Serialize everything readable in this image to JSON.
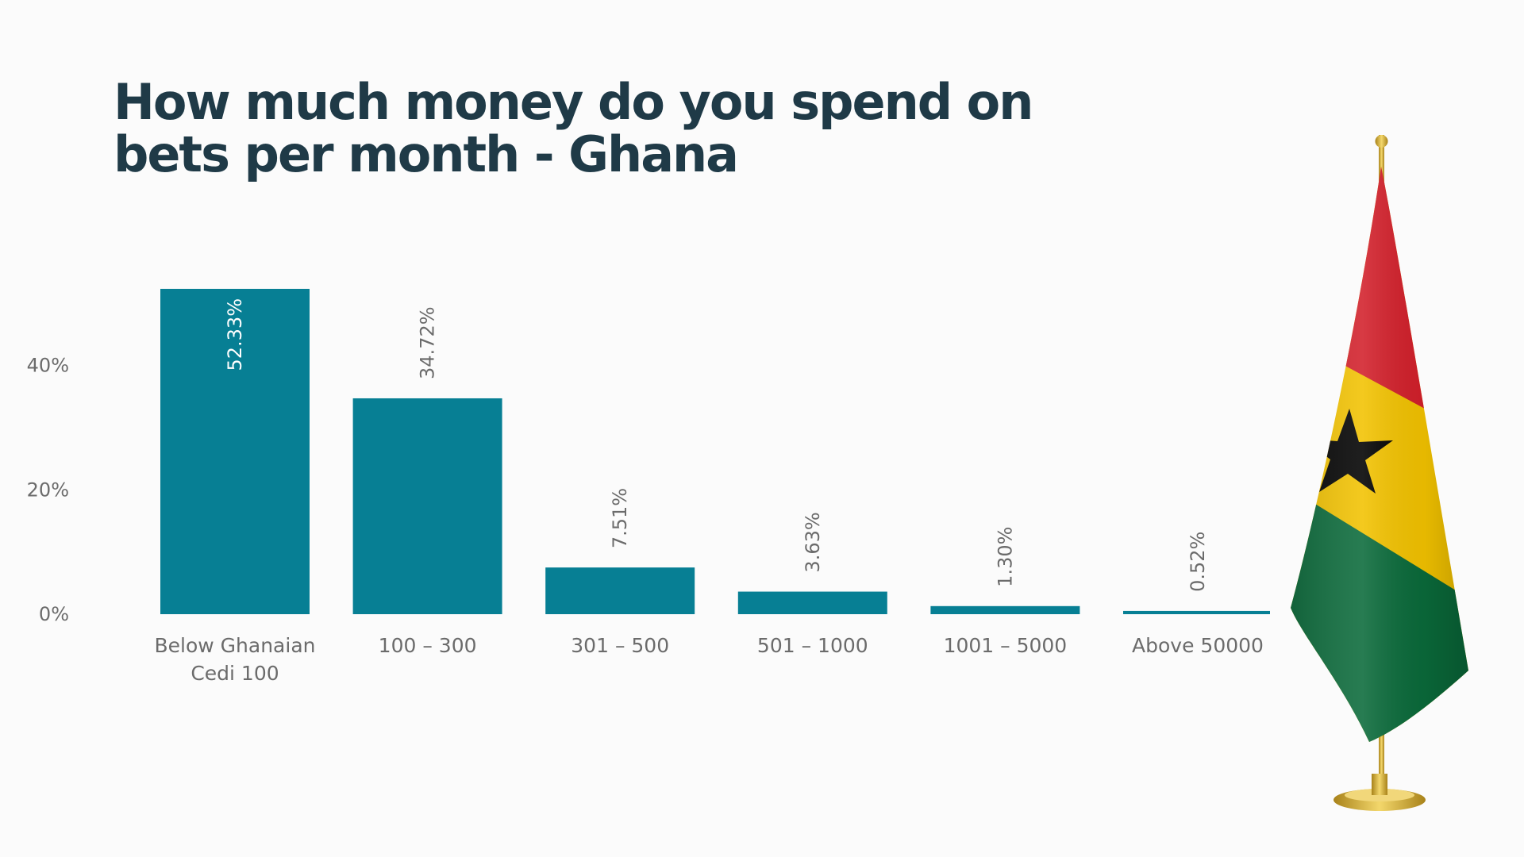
{
  "chart_data": {
    "type": "bar",
    "title": "How much money do you spend on bets per month - Ghana",
    "categories": [
      [
        "Below Ghanaian",
        "Cedi 100"
      ],
      [
        "100 – 300"
      ],
      [
        "301 – 500"
      ],
      [
        "501 – 1000"
      ],
      [
        "1001 – 5000"
      ],
      [
        "Above 50000"
      ]
    ],
    "values": [
      52.33,
      34.72,
      7.51,
      3.63,
      1.3,
      0.52
    ],
    "value_labels": [
      "52.33%",
      "34.72%",
      "7.51%",
      "3.63%",
      "1.30%",
      "0.52%"
    ],
    "yticks": [
      0,
      20,
      40
    ],
    "ytick_labels": [
      "0%",
      "20%",
      "40%"
    ],
    "ylim": [
      0,
      52.33
    ],
    "xlabel": "",
    "ylabel": "",
    "grid": false,
    "bar_color": "#077f94"
  },
  "flag": {
    "icon": "ghana-flag-icon",
    "colors": {
      "red": "#d21f2a",
      "yellow": "#f2c200",
      "green": "#0a6a3a",
      "star": "#000000",
      "pole": "#c9a227"
    }
  }
}
